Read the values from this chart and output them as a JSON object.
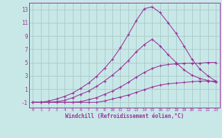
{
  "xlabel": "Windchill (Refroidissement éolien,°C)",
  "background_color": "#c8e8e8",
  "line_color": "#993399",
  "grid_color": "#a8c8c8",
  "xlim": [
    -0.5,
    23.5
  ],
  "ylim": [
    -1.8,
    14.0
  ],
  "xticks": [
    0,
    1,
    2,
    3,
    4,
    5,
    6,
    7,
    8,
    9,
    10,
    11,
    12,
    13,
    14,
    15,
    16,
    17,
    18,
    19,
    20,
    21,
    22,
    23
  ],
  "yticks": [
    -1,
    1,
    3,
    5,
    7,
    9,
    11,
    13
  ],
  "series": [
    [
      -1,
      -1,
      -1,
      -1,
      -1,
      -1,
      -1,
      -1,
      -1,
      -0.8,
      -0.5,
      -0.2,
      0.1,
      0.5,
      0.9,
      1.3,
      1.6,
      1.8,
      1.9,
      2.0,
      2.1,
      2.2,
      2.2,
      2.2
    ],
    [
      -1,
      -1,
      -1,
      -1,
      -1,
      -1,
      -0.9,
      -0.6,
      -0.3,
      0.2,
      0.7,
      1.3,
      2.0,
      2.8,
      3.5,
      4.1,
      4.5,
      4.7,
      4.8,
      4.9,
      4.9,
      4.9,
      5.0,
      5.0
    ],
    [
      -1,
      -1,
      -1,
      -0.9,
      -0.7,
      -0.3,
      0.2,
      0.7,
      1.4,
      2.2,
      3.1,
      4.1,
      5.3,
      6.6,
      7.7,
      8.5,
      7.5,
      6.2,
      5.0,
      3.9,
      3.1,
      2.6,
      2.3,
      2.0
    ],
    [
      -1,
      -1,
      -0.8,
      -0.5,
      -0.1,
      0.4,
      1.1,
      1.9,
      2.9,
      4.1,
      5.5,
      7.2,
      9.2,
      11.3,
      13.1,
      13.4,
      12.5,
      11.0,
      9.4,
      7.5,
      5.5,
      4.0,
      3.0,
      2.2
    ]
  ]
}
